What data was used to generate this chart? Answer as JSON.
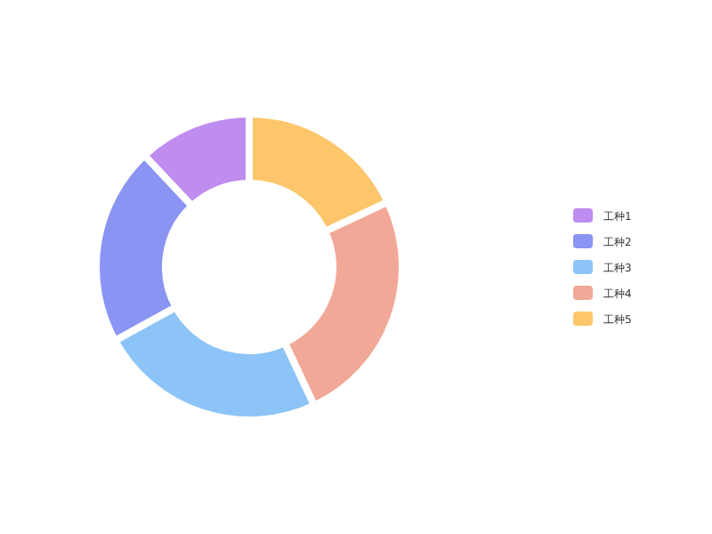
{
  "chart_data": {
    "type": "donut",
    "categories": [
      "工种1",
      "工种2",
      "工种3",
      "工种4",
      "工种5"
    ],
    "values": [
      12,
      21,
      24,
      25,
      18
    ],
    "colors": [
      "#bf8cef",
      "#8a94f2",
      "#8cc4f7",
      "#f2a897",
      "#fdc66a"
    ],
    "legend": "right"
  }
}
